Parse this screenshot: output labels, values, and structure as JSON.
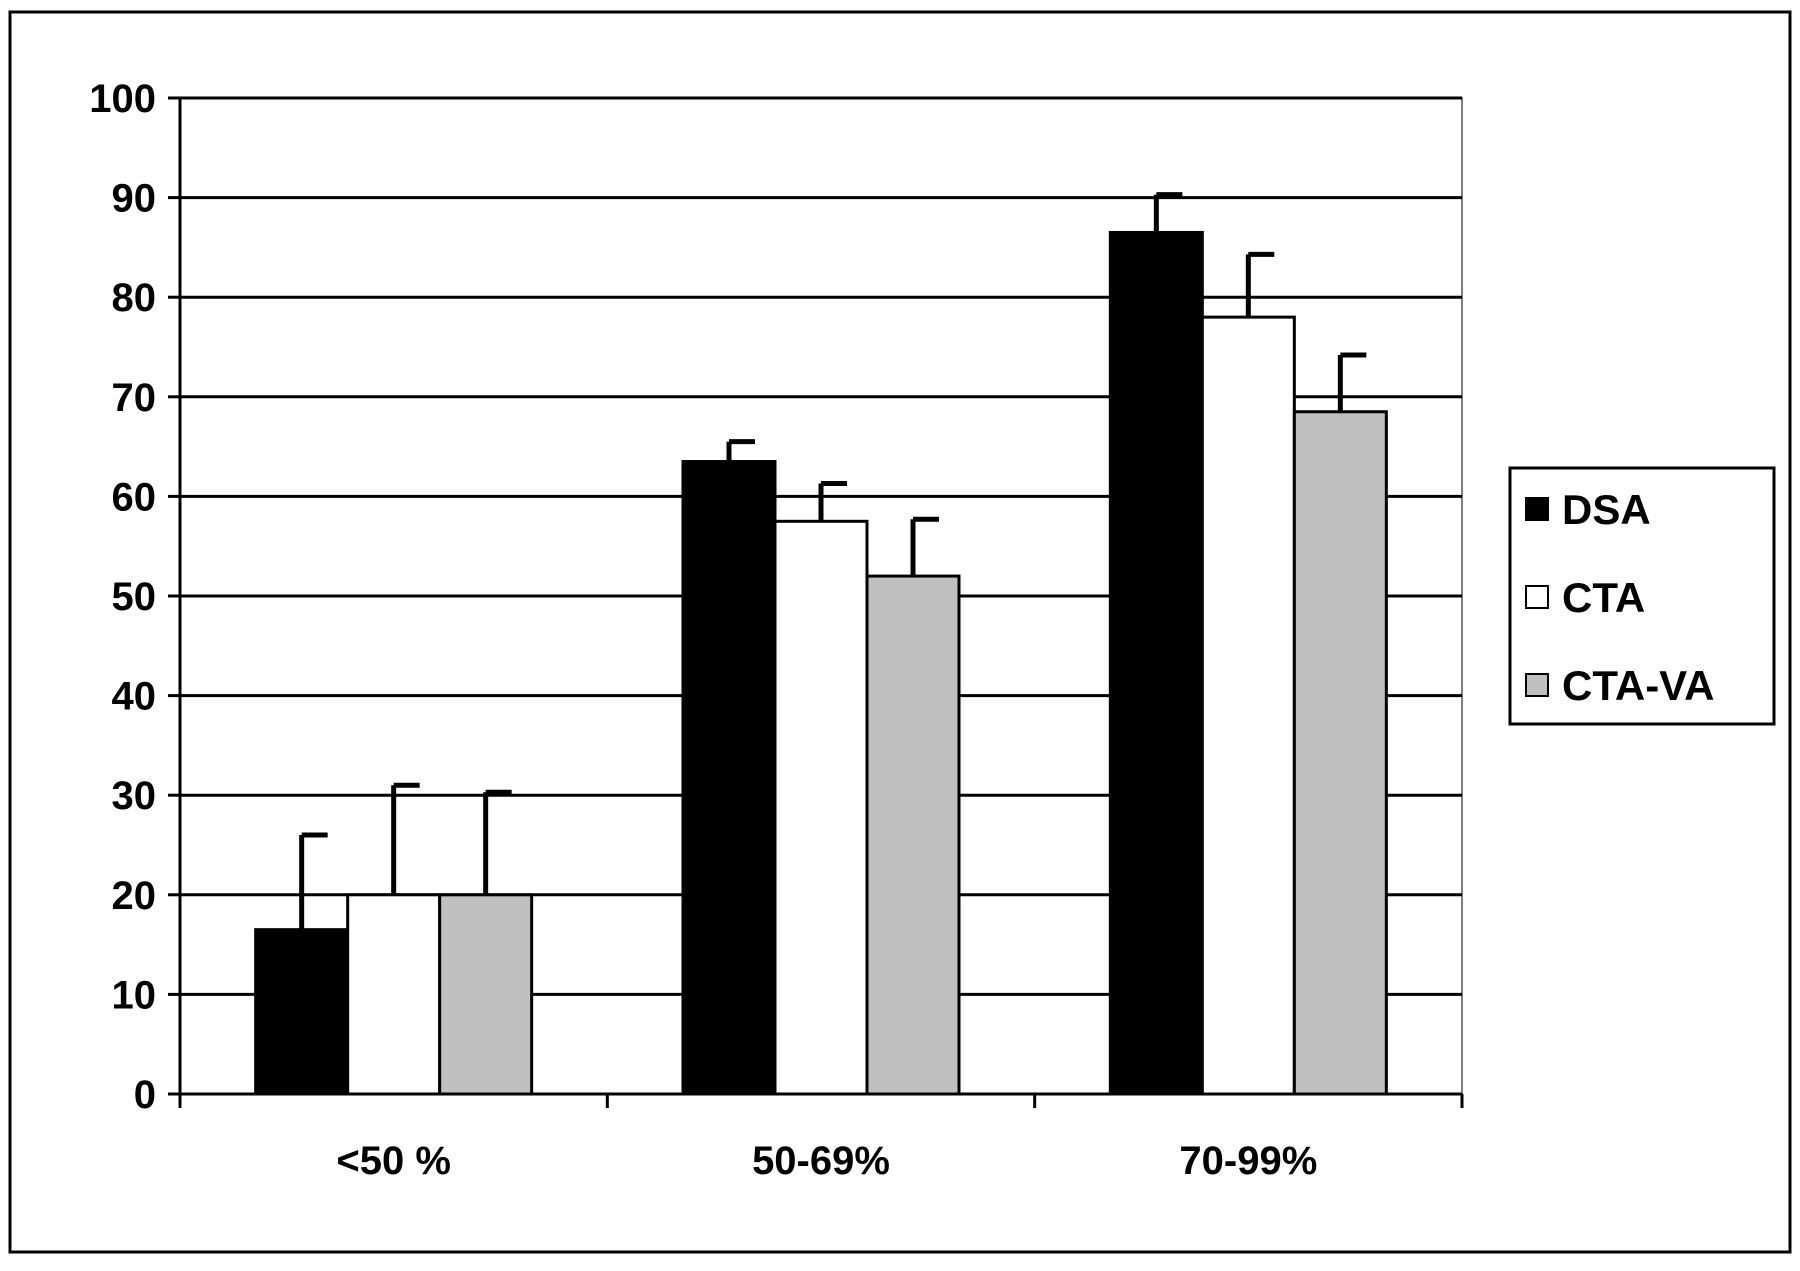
{
  "chart_data": {
    "type": "bar",
    "categories": [
      "<50 %",
      "50-69%",
      "70-99%"
    ],
    "series": [
      {
        "name": "DSA",
        "values": [
          16.5,
          63.5,
          86.5
        ],
        "errors": [
          9.5,
          2.0,
          3.8
        ],
        "color": "#000000"
      },
      {
        "name": "CTA",
        "values": [
          20,
          57.5,
          78
        ],
        "errors": [
          11,
          3.8,
          6.3
        ],
        "color": "#ffffff"
      },
      {
        "name": "CTA-VA",
        "values": [
          20,
          52,
          68.5
        ],
        "errors": [
          10.3,
          5.7,
          5.7
        ],
        "color": "#c0c0c0"
      }
    ],
    "title": "",
    "xlabel": "",
    "ylabel": "",
    "ylim": [
      0,
      100
    ],
    "yticks": [
      "0",
      "10",
      "20",
      "30",
      "40",
      "50",
      "60",
      "70",
      "80",
      "90",
      "100"
    ],
    "grid": true,
    "legend_position": "right"
  }
}
